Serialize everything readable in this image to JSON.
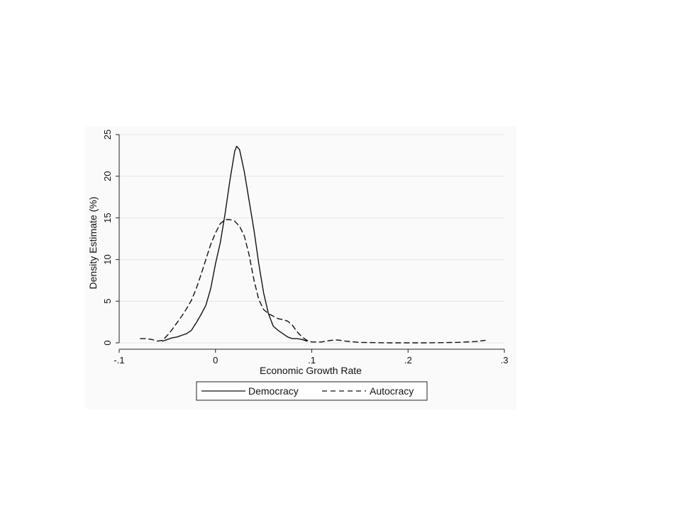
{
  "chart_data": {
    "type": "line",
    "title": "",
    "xlabel": "Economic Growth Rate",
    "ylabel": "Density Estimate (%)",
    "xlim": [
      -0.1,
      0.3
    ],
    "ylim": [
      0,
      25
    ],
    "x_ticks": [
      -0.1,
      0,
      0.1,
      0.2,
      0.3
    ],
    "x_tick_labels": [
      "-.1",
      "0",
      ".1",
      ".2",
      ".3"
    ],
    "y_ticks": [
      0,
      5,
      10,
      15,
      20,
      25
    ],
    "y_tick_labels": [
      "0",
      "5",
      "10",
      "15",
      "20",
      "25"
    ],
    "grid": "horizontal",
    "legend_position": "bottom",
    "series": [
      {
        "name": "Democracy",
        "style": "solid",
        "color": "#111111",
        "points": [
          [
            -0.055,
            0.2
          ],
          [
            -0.05,
            0.4
          ],
          [
            -0.045,
            0.6
          ],
          [
            -0.04,
            0.7
          ],
          [
            -0.035,
            0.9
          ],
          [
            -0.03,
            1.1
          ],
          [
            -0.025,
            1.5
          ],
          [
            -0.02,
            2.4
          ],
          [
            -0.015,
            3.4
          ],
          [
            -0.01,
            4.5
          ],
          [
            -0.005,
            6.5
          ],
          [
            0.0,
            9.5
          ],
          [
            0.005,
            12.0
          ],
          [
            0.01,
            15.5
          ],
          [
            0.015,
            19.5
          ],
          [
            0.02,
            23.0
          ],
          [
            0.022,
            23.6
          ],
          [
            0.025,
            23.2
          ],
          [
            0.03,
            20.5
          ],
          [
            0.035,
            17.0
          ],
          [
            0.04,
            13.5
          ],
          [
            0.045,
            9.5
          ],
          [
            0.05,
            6.0
          ],
          [
            0.055,
            3.5
          ],
          [
            0.06,
            2.0
          ],
          [
            0.065,
            1.5
          ],
          [
            0.07,
            1.1
          ],
          [
            0.075,
            0.7
          ],
          [
            0.08,
            0.5
          ],
          [
            0.085,
            0.5
          ],
          [
            0.09,
            0.4
          ],
          [
            0.095,
            0.2
          ]
        ]
      },
      {
        "name": "Autocracy",
        "style": "dashed",
        "color": "#111111",
        "points": [
          [
            -0.078,
            0.5
          ],
          [
            -0.072,
            0.5
          ],
          [
            -0.066,
            0.4
          ],
          [
            -0.06,
            0.2
          ],
          [
            -0.055,
            0.3
          ],
          [
            -0.05,
            0.9
          ],
          [
            -0.045,
            1.6
          ],
          [
            -0.04,
            2.4
          ],
          [
            -0.035,
            3.2
          ],
          [
            -0.03,
            4.1
          ],
          [
            -0.025,
            5.1
          ],
          [
            -0.02,
            6.5
          ],
          [
            -0.015,
            8.2
          ],
          [
            -0.01,
            10.0
          ],
          [
            -0.005,
            11.8
          ],
          [
            0.0,
            13.2
          ],
          [
            0.005,
            14.3
          ],
          [
            0.01,
            14.8
          ],
          [
            0.015,
            14.8
          ],
          [
            0.02,
            14.6
          ],
          [
            0.025,
            14.0
          ],
          [
            0.03,
            12.8
          ],
          [
            0.035,
            10.5
          ],
          [
            0.04,
            7.5
          ],
          [
            0.045,
            5.2
          ],
          [
            0.05,
            4.0
          ],
          [
            0.055,
            3.5
          ],
          [
            0.06,
            3.2
          ],
          [
            0.065,
            2.9
          ],
          [
            0.07,
            2.8
          ],
          [
            0.075,
            2.6
          ],
          [
            0.08,
            2.1
          ],
          [
            0.085,
            1.3
          ],
          [
            0.09,
            0.7
          ],
          [
            0.095,
            0.3
          ],
          [
            0.1,
            0.1
          ],
          [
            0.11,
            0.1
          ],
          [
            0.12,
            0.3
          ],
          [
            0.127,
            0.35
          ],
          [
            0.135,
            0.2
          ],
          [
            0.15,
            0.05
          ],
          [
            0.18,
            0.0
          ],
          [
            0.22,
            0.0
          ],
          [
            0.25,
            0.05
          ],
          [
            0.27,
            0.15
          ],
          [
            0.28,
            0.3
          ]
        ]
      }
    ]
  }
}
